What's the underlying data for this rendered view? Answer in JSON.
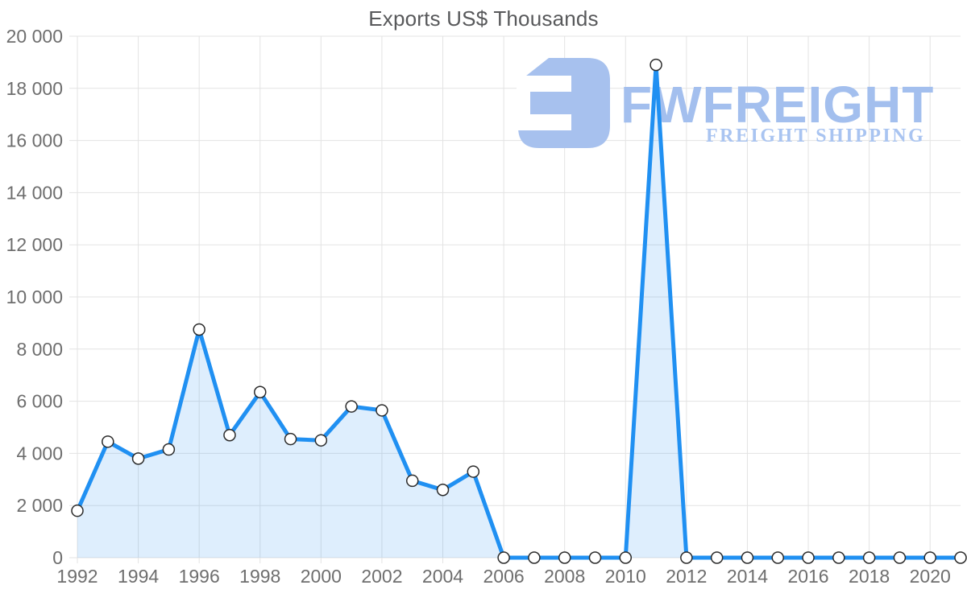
{
  "title": "Exports US$ Thousands",
  "watermark": {
    "brand": "FWFREIGHT",
    "tagline": "FREIGHT SHIPPING",
    "mark_icon": "fwfreight-logo-mark",
    "brand_color": "#a3bfee",
    "tagline_color": "#a9c4f1",
    "mark_color": "#a7c1ee"
  },
  "chart_data": {
    "type": "area",
    "title": "Exports US$ Thousands",
    "series_name": "Exports US$ Thousands",
    "x": [
      1992,
      1993,
      1994,
      1995,
      1996,
      1997,
      1998,
      1999,
      2000,
      2001,
      2002,
      2003,
      2004,
      2005,
      2006,
      2007,
      2008,
      2009,
      2010,
      2011,
      2012,
      2013,
      2014,
      2015,
      2016,
      2017,
      2018,
      2019,
      2020,
      2021
    ],
    "values": [
      1800,
      4450,
      3800,
      4150,
      8750,
      4700,
      6350,
      4550,
      4500,
      5800,
      5650,
      2950,
      2600,
      3300,
      0,
      0,
      0,
      0,
      0,
      18900,
      0,
      0,
      0,
      0,
      0,
      0,
      0,
      0,
      0,
      0
    ],
    "x_tick_labels": [
      "1992",
      "1994",
      "1996",
      "1998",
      "2000",
      "2002",
      "2004",
      "2006",
      "2008",
      "2010",
      "2012",
      "2014",
      "2016",
      "2018",
      "2020"
    ],
    "x_tick_years": [
      1992,
      1994,
      1996,
      1998,
      2000,
      2002,
      2004,
      2006,
      2008,
      2010,
      2012,
      2014,
      2016,
      2018,
      2020
    ],
    "y_tick_labels": [
      "0",
      "2 000",
      "4 000",
      "6 000",
      "8 000",
      "10 000",
      "12 000",
      "14 000",
      "16 000",
      "18 000",
      "20 000"
    ],
    "y_tick_values": [
      0,
      2000,
      4000,
      6000,
      8000,
      10000,
      12000,
      14000,
      16000,
      18000,
      20000
    ],
    "xlabel": "",
    "ylabel": "",
    "ylim": [
      0,
      20000
    ],
    "grid": true,
    "legend_position": "none",
    "colors": {
      "line": "#2090f2",
      "fill": "rgba(32,144,242,0.15)",
      "marker_fill": "#ffffff",
      "marker_stroke": "#2b2b2b",
      "grid": "#e3e3e3",
      "axis_text": "#6e6e6e",
      "title_text": "#58595b"
    }
  }
}
